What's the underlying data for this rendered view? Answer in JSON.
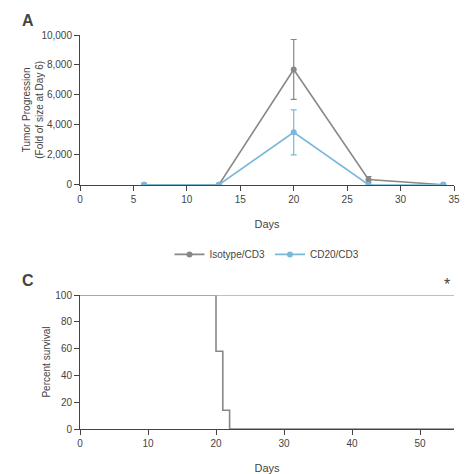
{
  "chart_data": [
    {
      "type": "line",
      "title": "A",
      "xlabel": "Days",
      "ylabel": "Tumor Progression\n(Fold of size at Day 6)",
      "xlim": [
        0,
        35
      ],
      "ylim": [
        0,
        10000
      ],
      "xticks": [
        0,
        5,
        10,
        15,
        20,
        25,
        30,
        35
      ],
      "yticks": [
        0,
        {
          "value": 2000,
          "label": "2,000"
        },
        {
          "value": 4000,
          "label": "4,000"
        },
        {
          "value": 6000,
          "label": "6,000"
        },
        {
          "value": 8000,
          "label": "8,000"
        },
        {
          "value": 10000,
          "label": "10,000"
        }
      ],
      "grid": false,
      "legend": "bottom",
      "x": [
        6,
        13,
        20,
        27,
        34
      ],
      "series": [
        {
          "name": "Isotype/CD3",
          "color": "#888888",
          "marker": "circle",
          "values": [
            0,
            0,
            7700,
            350,
            0
          ],
          "yerr": [
            0,
            0,
            2000,
            200,
            0
          ]
        },
        {
          "name": "CD20/CD3",
          "color": "#7ab8d9",
          "marker": "circle",
          "values": [
            0,
            0,
            3500,
            0,
            0
          ],
          "yerr": [
            0,
            0,
            1500,
            0,
            0
          ]
        }
      ]
    },
    {
      "type": "line",
      "title": "C",
      "xlabel": "Days",
      "ylabel": "Percent survival",
      "xlim": [
        0,
        55
      ],
      "ylim": [
        0,
        100
      ],
      "xticks": [
        0,
        10,
        20,
        30,
        40,
        50
      ],
      "yticks": [
        0,
        20,
        40,
        60,
        80,
        100
      ],
      "grid": false,
      "series": [
        {
          "color": "#888888",
          "x": [
            0,
            20,
            20,
            21,
            21,
            22,
            22,
            55
          ],
          "values": [
            100,
            100,
            58,
            58,
            14,
            14,
            0,
            0
          ]
        },
        {
          "color": "#7ab8d9",
          "x": [
            0,
            55
          ],
          "values": [
            100,
            100
          ]
        }
      ],
      "annotations": [
        {
          "text": "*",
          "x": 54,
          "y": 100
        }
      ]
    }
  ]
}
